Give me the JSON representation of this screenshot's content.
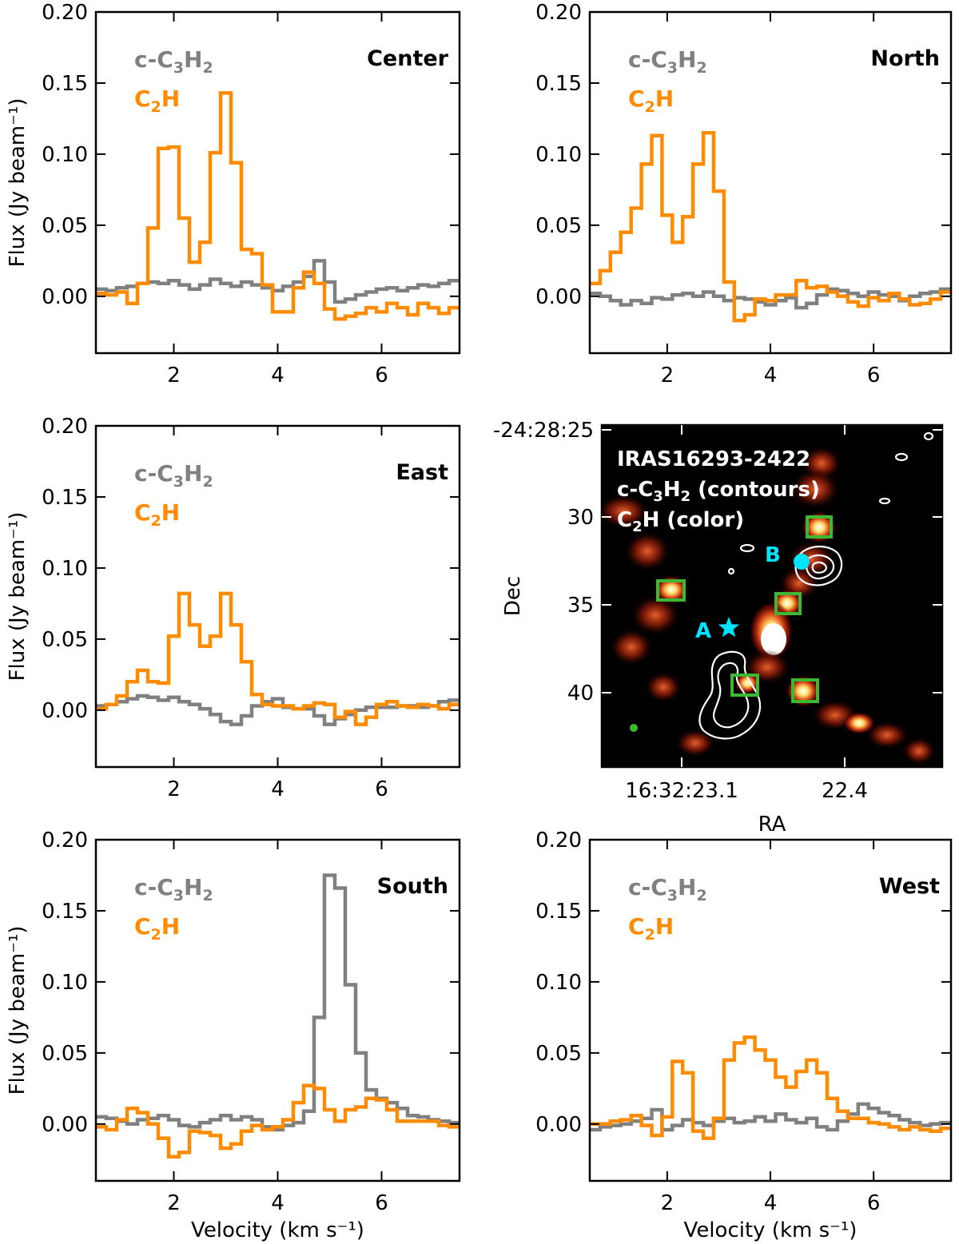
{
  "figure": {
    "colors": {
      "c3h2": "#808080",
      "c2h": "#ff8c00",
      "marker": "#00e5ff",
      "box": "#3cb832",
      "contour": "#ffffff"
    }
  },
  "legend": {
    "c3h2_main": "c-C",
    "c3h2_sub1": "3",
    "c3h2_mid": "H",
    "c3h2_sub2": "2",
    "c2h_main": "C",
    "c2h_sub": "2",
    "c2h_tail": "H"
  },
  "chart_data": [
    {
      "type": "line",
      "drawstyle": "steps-mid",
      "region": "Center",
      "ylabel": "Flux (Jy beam⁻¹)",
      "xlabel": "",
      "xlim": [
        0.5,
        7.5
      ],
      "ylim": [
        -0.04,
        0.2
      ],
      "xticks": [
        "2",
        "4",
        "6"
      ],
      "yticks": [
        "0.00",
        "0.05",
        "0.10",
        "0.15",
        "0.20"
      ],
      "x": [
        0.6,
        0.8,
        1.0,
        1.2,
        1.4,
        1.6,
        1.8,
        2.0,
        2.2,
        2.4,
        2.6,
        2.8,
        3.0,
        3.2,
        3.4,
        3.6,
        3.8,
        4.0,
        4.2,
        4.4,
        4.6,
        4.8,
        5.0,
        5.2,
        5.4,
        5.6,
        5.8,
        6.0,
        6.2,
        6.4,
        6.6,
        6.8,
        7.0,
        7.2,
        7.4
      ],
      "series": [
        {
          "name": "c-C3H2",
          "values": [
            0.005,
            0.004,
            0.006,
            0.007,
            0.009,
            0.01,
            0.009,
            0.011,
            0.008,
            0.005,
            0.008,
            0.012,
            0.009,
            0.007,
            0.01,
            0.008,
            0.006,
            0.004,
            0.007,
            0.01,
            0.014,
            0.025,
            0.01,
            -0.004,
            -0.002,
            0.001,
            0.003,
            0.005,
            0.006,
            0.004,
            0.006,
            0.008,
            0.007,
            0.009,
            0.011
          ]
        },
        {
          "name": "C2H",
          "values": [
            0.002,
            0.001,
            0.003,
            -0.005,
            0.009,
            0.048,
            0.104,
            0.105,
            0.055,
            0.024,
            0.038,
            0.101,
            0.143,
            0.094,
            0.033,
            0.03,
            0.008,
            -0.011,
            -0.011,
            0.006,
            0.017,
            0.009,
            -0.009,
            -0.016,
            -0.014,
            -0.012,
            -0.008,
            -0.011,
            -0.005,
            -0.008,
            -0.013,
            -0.005,
            -0.008,
            -0.012,
            -0.008
          ]
        }
      ]
    },
    {
      "type": "line",
      "drawstyle": "steps-mid",
      "region": "North",
      "ylabel": "",
      "xlabel": "",
      "xlim": [
        0.5,
        7.5
      ],
      "ylim": [
        -0.04,
        0.2
      ],
      "xticks": [
        "2",
        "4",
        "6"
      ],
      "yticks": [
        "0.00",
        "0.05",
        "0.10",
        "0.15",
        "0.20"
      ],
      "x": [
        0.6,
        0.8,
        1.0,
        1.2,
        1.4,
        1.6,
        1.8,
        2.0,
        2.2,
        2.4,
        2.6,
        2.8,
        3.0,
        3.2,
        3.4,
        3.6,
        3.8,
        4.0,
        4.2,
        4.4,
        4.6,
        4.8,
        5.0,
        5.2,
        5.4,
        5.6,
        5.8,
        6.0,
        6.2,
        6.4,
        6.6,
        6.8,
        7.0,
        7.2,
        7.4
      ],
      "series": [
        {
          "name": "c-C3H2",
          "values": [
            0.002,
            0.0,
            -0.003,
            -0.006,
            -0.003,
            -0.005,
            -0.001,
            -0.002,
            0.001,
            0.002,
            0.0,
            0.003,
            0.0,
            -0.003,
            -0.001,
            -0.002,
            -0.004,
            -0.006,
            -0.003,
            -0.001,
            -0.008,
            -0.005,
            0.001,
            0.005,
            0.004,
            0.002,
            0.0,
            0.003,
            0.001,
            0.0,
            -0.003,
            0.0,
            0.002,
            0.003,
            0.005
          ]
        },
        {
          "name": "C2H",
          "values": [
            0.009,
            0.018,
            0.031,
            0.045,
            0.062,
            0.093,
            0.113,
            0.057,
            0.038,
            0.056,
            0.093,
            0.115,
            0.074,
            0.01,
            -0.017,
            -0.013,
            -0.002,
            -0.003,
            0.001,
            0.001,
            0.011,
            0.006,
            0.007,
            0.003,
            0.0,
            -0.004,
            -0.007,
            -0.001,
            -0.003,
            0.002,
            -0.002,
            -0.006,
            -0.005,
            -0.002,
            0.003
          ]
        }
      ]
    },
    {
      "type": "line",
      "drawstyle": "steps-mid",
      "region": "East",
      "ylabel": "Flux (Jy beam⁻¹)",
      "xlabel": "",
      "xlim": [
        0.5,
        7.5
      ],
      "ylim": [
        -0.04,
        0.2
      ],
      "xticks": [
        "2",
        "4",
        "6"
      ],
      "yticks": [
        "0.00",
        "0.05",
        "0.10",
        "0.15",
        "0.20"
      ],
      "x": [
        0.6,
        0.8,
        1.0,
        1.2,
        1.4,
        1.6,
        1.8,
        2.0,
        2.2,
        2.4,
        2.6,
        2.8,
        3.0,
        3.2,
        3.4,
        3.6,
        3.8,
        4.0,
        4.2,
        4.4,
        4.6,
        4.8,
        5.0,
        5.2,
        5.4,
        5.6,
        5.8,
        6.0,
        6.2,
        6.4,
        6.6,
        6.8,
        7.0,
        7.2,
        7.4
      ],
      "series": [
        {
          "name": "c-C3H2",
          "values": [
            0.003,
            0.004,
            0.006,
            0.008,
            0.01,
            0.009,
            0.007,
            0.009,
            0.006,
            0.004,
            0.001,
            -0.003,
            -0.008,
            -0.01,
            -0.004,
            0.003,
            0.006,
            0.008,
            0.002,
            0.001,
            0.001,
            -0.004,
            -0.01,
            -0.006,
            -0.003,
            0.0,
            0.002,
            0.002,
            0.002,
            0.003,
            0.003,
            0.002,
            0.003,
            0.006,
            0.007
          ]
        },
        {
          "name": "C2H",
          "values": [
            0.001,
            0.004,
            0.01,
            0.02,
            0.028,
            0.02,
            0.019,
            0.052,
            0.082,
            0.06,
            0.045,
            0.052,
            0.082,
            0.06,
            0.034,
            0.011,
            0.004,
            0.003,
            0.003,
            0.001,
            0.003,
            0.005,
            0.004,
            -0.005,
            -0.001,
            -0.01,
            -0.005,
            0.004,
            0.006,
            0.003,
            0.002,
            0.004,
            0.003,
            0.001,
            0.004
          ]
        }
      ]
    },
    {
      "type": "line",
      "drawstyle": "steps-mid",
      "region": "South",
      "ylabel": "Flux (Jy beam⁻¹)",
      "xlabel": "Velocity (km s⁻¹)",
      "xlim": [
        0.5,
        7.5
      ],
      "ylim": [
        -0.04,
        0.2
      ],
      "xticks": [
        "2",
        "4",
        "6"
      ],
      "yticks": [
        "0.00",
        "0.05",
        "0.10",
        "0.15",
        "0.20"
      ],
      "x": [
        0.6,
        0.8,
        1.0,
        1.2,
        1.4,
        1.6,
        1.8,
        2.0,
        2.2,
        2.4,
        2.6,
        2.8,
        3.0,
        3.2,
        3.4,
        3.6,
        3.8,
        4.0,
        4.2,
        4.4,
        4.6,
        4.8,
        5.0,
        5.2,
        5.4,
        5.6,
        5.8,
        6.0,
        6.2,
        6.4,
        6.6,
        6.8,
        7.0,
        7.2,
        7.4
      ],
      "series": [
        {
          "name": "c-C3H2",
          "values": [
            0.005,
            0.004,
            0.002,
            0.0,
            0.003,
            0.004,
            0.006,
            0.003,
            -0.001,
            -0.002,
            0.001,
            0.003,
            0.006,
            0.003,
            0.005,
            0.003,
            -0.002,
            -0.004,
            -0.001,
            0.001,
            0.009,
            0.075,
            0.175,
            0.166,
            0.098,
            0.05,
            0.024,
            0.018,
            0.015,
            0.011,
            0.006,
            0.005,
            0.003,
            0.002,
            0.001
          ]
        },
        {
          "name": "C2H",
          "values": [
            -0.002,
            -0.004,
            0.003,
            0.011,
            0.008,
            0.0,
            -0.01,
            -0.023,
            -0.02,
            -0.005,
            -0.006,
            -0.008,
            -0.017,
            -0.014,
            -0.005,
            -0.001,
            -0.004,
            -0.002,
            0.003,
            0.015,
            0.027,
            0.025,
            0.01,
            0.002,
            0.01,
            0.012,
            0.018,
            0.017,
            0.01,
            0.002,
            0.002,
            0.002,
            0.002,
            -0.001,
            -0.002
          ]
        }
      ]
    },
    {
      "type": "line",
      "drawstyle": "steps-mid",
      "region": "West",
      "ylabel": "",
      "xlabel": "Velocity (km s⁻¹)",
      "xlim": [
        0.5,
        7.5
      ],
      "ylim": [
        -0.04,
        0.2
      ],
      "xticks": [
        "2",
        "4",
        "6"
      ],
      "yticks": [
        "0.00",
        "0.05",
        "0.10",
        "0.15",
        "0.20"
      ],
      "x": [
        0.6,
        0.8,
        1.0,
        1.2,
        1.4,
        1.6,
        1.8,
        2.0,
        2.2,
        2.4,
        2.6,
        2.8,
        3.0,
        3.2,
        3.4,
        3.6,
        3.8,
        4.0,
        4.2,
        4.4,
        4.6,
        4.8,
        5.0,
        5.2,
        5.4,
        5.6,
        5.8,
        6.0,
        6.2,
        6.4,
        6.6,
        6.8,
        7.0,
        7.2,
        7.4
      ],
      "series": [
        {
          "name": "c-C3H2",
          "values": [
            -0.004,
            -0.002,
            -0.001,
            0.0,
            0.002,
            0.004,
            0.01,
            -0.004,
            -0.001,
            0.003,
            0.001,
            -0.001,
            0.002,
            0.004,
            0.001,
            0.002,
            0.005,
            0.002,
            0.007,
            0.003,
            0.001,
            0.004,
            -0.002,
            -0.004,
            0.002,
            0.007,
            0.014,
            0.011,
            0.008,
            0.006,
            0.003,
            0.001,
            -0.001,
            0.0,
            0.001
          ]
        },
        {
          "name": "C2H",
          "values": [
            0.0,
            0.0,
            0.002,
            0.003,
            0.006,
            -0.001,
            -0.008,
            0.005,
            0.044,
            0.036,
            -0.005,
            -0.01,
            0.004,
            0.045,
            0.057,
            0.061,
            0.052,
            0.045,
            0.033,
            0.026,
            0.037,
            0.045,
            0.036,
            0.018,
            0.009,
            0.004,
            0.004,
            0.001,
            0.0,
            -0.002,
            -0.004,
            -0.002,
            -0.004,
            -0.005,
            -0.003
          ]
        }
      ]
    }
  ],
  "map": {
    "title_line1": "IRAS16293-2422",
    "title_line2_main": "c-C",
    "title_line2_sub1": "3",
    "title_line2_mid": "H",
    "title_line2_sub2": "2",
    "title_line2_tail": " (contours)",
    "title_line3_main": "C",
    "title_line3_sub": "2",
    "title_line3_tail": "H (color)",
    "ylabel": "Dec",
    "xlabel": "RA",
    "yticks": [
      "-24:28:25",
      "30",
      "35",
      "40"
    ],
    "xticks": [
      "16:32:23.1",
      "22.4"
    ],
    "source_a": "A",
    "source_b": "B"
  }
}
